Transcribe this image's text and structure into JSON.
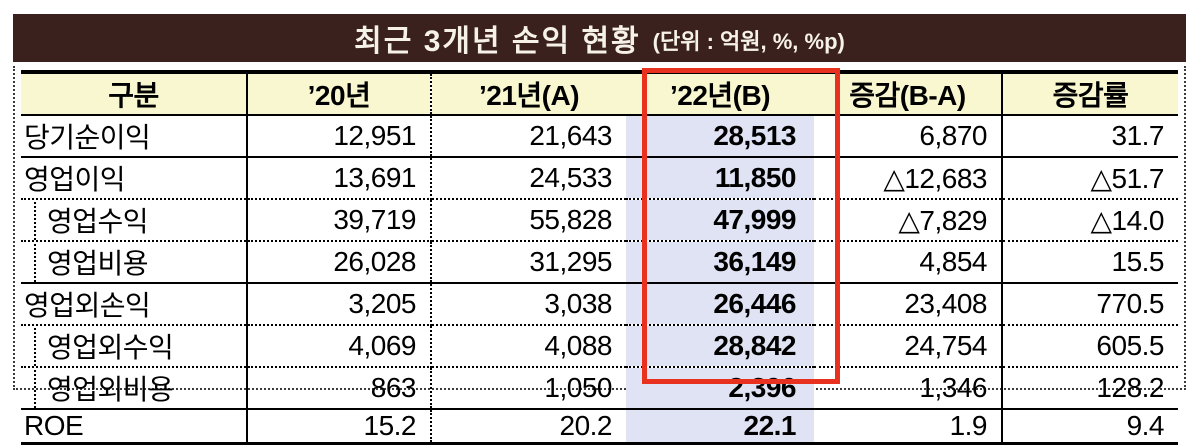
{
  "title": {
    "main": "최근 3개년 손익 현황",
    "unit": "(단위 : 억원, %, %p)"
  },
  "table": {
    "columns": [
      "구분",
      "’20년",
      "’21년(A)",
      "’22년(B)",
      "증감(B-A)",
      "증감률"
    ],
    "highlighted_column": "’22년(B)",
    "rows": [
      {
        "label": "당기순이익",
        "indent": false,
        "values": [
          "12,951",
          "21,643",
          "28,513",
          "6,870",
          "31.7"
        ]
      },
      {
        "label": "영업이익",
        "indent": false,
        "values": [
          "13,691",
          "24,533",
          "11,850",
          "△12,683",
          "△51.7"
        ]
      },
      {
        "label": "영업수익",
        "indent": true,
        "values": [
          "39,719",
          "55,828",
          "47,999",
          "△7,829",
          "△14.0"
        ]
      },
      {
        "label": "영업비용",
        "indent": true,
        "values": [
          "26,028",
          "31,295",
          "36,149",
          "4,854",
          "15.5"
        ]
      },
      {
        "label": "영업외손익",
        "indent": false,
        "values": [
          "3,205",
          "3,038",
          "26,446",
          "23,408",
          "770.5"
        ]
      },
      {
        "label": "영업외수익",
        "indent": true,
        "values": [
          "4,069",
          "4,088",
          "28,842",
          "24,754",
          "605.5"
        ]
      },
      {
        "label": "영업외비용",
        "indent": true,
        "values": [
          "863",
          "1,050",
          "2,396",
          "1,346",
          "128.2"
        ]
      },
      {
        "label": "ROE",
        "indent": false,
        "values": [
          "15.2",
          "20.2",
          "22.1",
          "1.9",
          "9.4"
        ]
      }
    ]
  },
  "colors": {
    "title_bar_bg": "#3a211e",
    "title_text": "#f6f2ea",
    "header_bg": "#f8f7d0",
    "highlight_cell_bg": "#e0e3f4",
    "highlight_border": "#e8311f",
    "line": "#000000"
  }
}
